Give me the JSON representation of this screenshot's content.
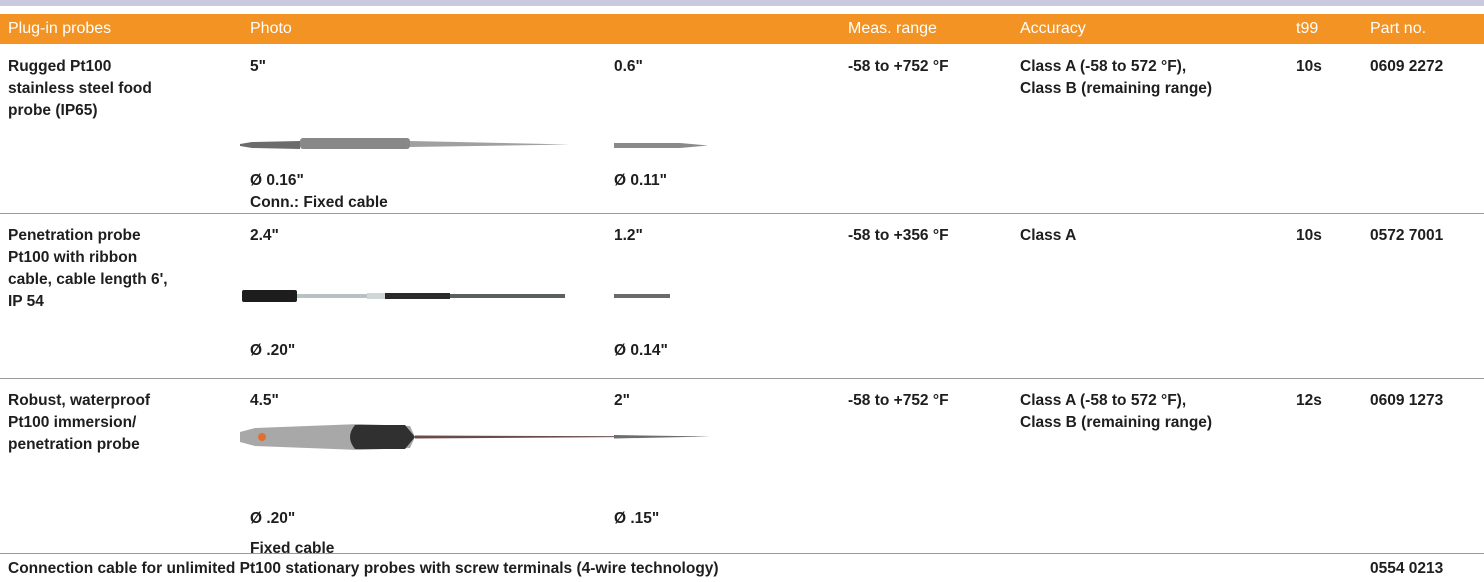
{
  "header": [
    "Plug-in probes",
    "Photo",
    "Meas. range",
    "Accuracy",
    "t99",
    "Part no."
  ],
  "rows": [
    {
      "name": [
        "Rugged Pt100",
        "stainless steel food",
        "probe (IP65)"
      ],
      "photo": {
        "length_a": "5\"",
        "length_b": "0.6\"",
        "diam_a": "Ø 0.16\"",
        "diam_b": "Ø 0.11\"",
        "note": "Conn.: Fixed cable"
      },
      "range": "-58 to +752 °F",
      "accuracy": [
        "Class A (-58 to 572 °F),",
        "Class B (remaining range)"
      ],
      "t99": "10s",
      "part": "0609 2272"
    },
    {
      "name": [
        "Penetration probe",
        "Pt100 with ribbon",
        "cable, cable length 6',",
        "IP 54"
      ],
      "photo": {
        "length_a": "2.4\"",
        "length_b": "1.2\"",
        "diam_a": "Ø .20\"",
        "diam_b": "Ø 0.14\""
      },
      "range": "-58 to +356 °F",
      "accuracy": [
        "Class A"
      ],
      "t99": "10s",
      "part": "0572 7001"
    },
    {
      "name": [
        "Robust, waterproof",
        "Pt100 immersion/",
        "penetration probe"
      ],
      "photo": {
        "length_a": "4.5\"",
        "length_b": "2\"",
        "diam_a": "Ø .20\"",
        "diam_b": "Ø .15\"",
        "note": "Fixed cable"
      },
      "range": "-58 to +752 °F",
      "accuracy": [
        "Class A (-58 to 572 °F),",
        "Class B (remaining range)"
      ],
      "t99": "12s",
      "part": "0609 1273"
    }
  ],
  "footer": {
    "text": "Connection cable for unlimited Pt100 stationary probes with screw terminals (4-wire technology)",
    "part": "0554 0213"
  }
}
